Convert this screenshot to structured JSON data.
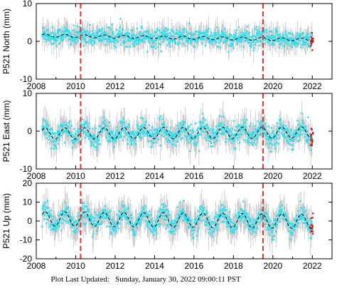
{
  "chart_data": [
    {
      "type": "scatter",
      "ylabel": "P521 North (mm)",
      "xlim": [
        2008,
        2023
      ],
      "ylim": [
        -10,
        10
      ],
      "yticks": [
        10,
        0,
        -10
      ],
      "xticks": [
        "2008",
        "2010",
        "2012",
        "2014",
        "2016",
        "2018",
        "2020",
        "2022"
      ],
      "show_xtick_labels": true,
      "model": {
        "offset": 1.0,
        "trend": -0.08,
        "amplitude": 0.4,
        "noise": 1.2
      },
      "error_bar_halfwidth": 2.5
    },
    {
      "type": "scatter",
      "ylabel": "P521 East (mm)",
      "xlim": [
        2008,
        2023
      ],
      "ylim": [
        -10,
        10
      ],
      "yticks": [
        10,
        0,
        -10
      ],
      "xticks": [
        "2008",
        "2010",
        "2012",
        "2014",
        "2016",
        "2018",
        "2020",
        "2022"
      ],
      "show_xtick_labels": true,
      "model": {
        "offset": -0.5,
        "trend": 0.02,
        "amplitude": 1.5,
        "noise": 1.4
      },
      "error_bar_halfwidth": 3.0
    },
    {
      "type": "scatter",
      "ylabel": "P521 Up (mm)",
      "xlim": [
        2008,
        2023
      ],
      "ylim": [
        -20,
        20
      ],
      "yticks": [
        20,
        10,
        0,
        -10,
        -20
      ],
      "xticks": [
        "2008",
        "2010",
        "2012",
        "2014",
        "2016",
        "2018",
        "2020",
        "2022"
      ],
      "show_xtick_labels": true,
      "model": {
        "offset": 0.5,
        "trend": -0.1,
        "amplitude": 3.8,
        "noise": 2.6
      },
      "error_bar_halfwidth": 6.5
    }
  ],
  "event_lines": [
    2010.25,
    2019.5
  ],
  "data_range": [
    2008.3,
    2022.0
  ],
  "colors": {
    "data": "#1fe4f6",
    "error_bars": "#a9a9a9",
    "model": "#000000",
    "event_lines": "#e8332b",
    "recent_points": "#d42020"
  },
  "footer": {
    "prefix": "Plot Last Updated:",
    "timestamp": "Sunday, January 30, 2022 09:00:11 PST"
  }
}
